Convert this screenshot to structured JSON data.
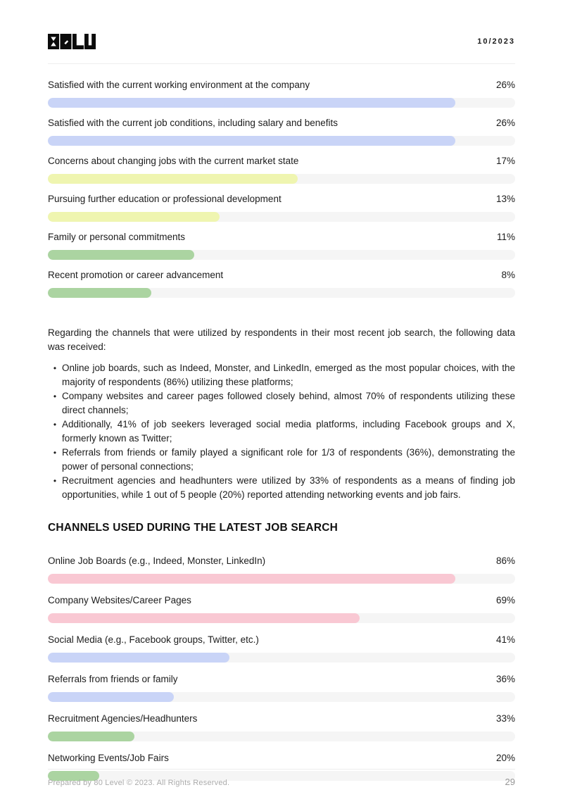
{
  "header": {
    "logo_text": "80LV",
    "date": "10/2023"
  },
  "intro_paragraph": "Regarding the channels that were utilized by respondents in their most recent job search, the following data was received:",
  "bullets": [
    "Online job boards, such as Indeed, Monster, and LinkedIn, emerged as the most popular choices, with the majority of respondents (86%) utilizing these platforms;",
    "Company websites and career pages followed closely behind, almost 70% of respondents utilizing these direct channels;",
    "Additionally, 41% of job seekers leveraged social media platforms, including Facebook groups and X, formerly known as Twitter;",
    "Referrals from friends or family played a significant role for 1/3 of respondents (36%), demonstrating the power of personal connections;",
    "Recruitment agencies and headhunters were utilized by 33% of respondents as a means of finding job opportunities, while 1 out of 5 people (20%) reported attending networking events and job fairs."
  ],
  "section_heading": "CHANNELS USED DURING THE LATEST JOB SEARCH",
  "chart_data": [
    {
      "type": "bar",
      "orientation": "horizontal",
      "title": "",
      "unit": "%",
      "value_labels_position": "right",
      "grid": false,
      "legend": false,
      "categories": [
        "Satisfied with the current working environment at the company",
        "Satisfied with the current job conditions, including salary and benefits",
        "Concerns about changing jobs with the current market state",
        "Pursuing further education or professional development",
        "Family or personal commitments",
        "Recent promotion or career advancement"
      ],
      "values": [
        26,
        26,
        17,
        13,
        11,
        8
      ],
      "rows": [
        {
          "label": "Satisfied with the current working environment at the company",
          "value": 26,
          "display_value": "26%",
          "color": "#c9d4f7",
          "bar_pct": 87.2
        },
        {
          "label": "Satisfied with the current job conditions, including salary and benefits",
          "value": 26,
          "display_value": "26%",
          "color": "#c9d4f7",
          "bar_pct": 87.2
        },
        {
          "label": "Concerns about changing jobs with the current market state",
          "value": 17,
          "display_value": "17%",
          "color": "#eff5b0",
          "bar_pct": 53.5
        },
        {
          "label": "Pursuing further education or professional development",
          "value": 13,
          "display_value": "13%",
          "color": "#eff5b0",
          "bar_pct": 36.8
        },
        {
          "label": "Family or personal commitments",
          "value": 11,
          "display_value": "11%",
          "color": "#abd4a1",
          "bar_pct": 31.4
        },
        {
          "label": "Recent promotion or career advancement",
          "value": 8,
          "display_value": "8%",
          "color": "#abd4a1",
          "bar_pct": 22.1
        }
      ]
    },
    {
      "type": "bar",
      "orientation": "horizontal",
      "title": "CHANNELS USED DURING THE LATEST JOB SEARCH",
      "unit": "%",
      "value_labels_position": "right",
      "grid": false,
      "legend": false,
      "categories": [
        "Online Job Boards (e.g., Indeed, Monster, LinkedIn)",
        "Company Websites/Career Pages",
        "Social Media (e.g., Facebook groups, Twitter, etc.)",
        "Referrals from friends or family",
        "Recruitment Agencies/Headhunters",
        "Networking Events/Job Fairs"
      ],
      "values": [
        86,
        69,
        41,
        36,
        33,
        20
      ],
      "rows": [
        {
          "label": "Online Job Boards (e.g., Indeed, Monster, LinkedIn)",
          "value": 86,
          "display_value": "86%",
          "color": "#f9c8d3",
          "bar_pct": 87.2
        },
        {
          "label": "Company Websites/Career Pages",
          "value": 69,
          "display_value": "69%",
          "color": "#f9c8d3",
          "bar_pct": 66.7
        },
        {
          "label": "Social Media (e.g., Facebook groups, Twitter, etc.)",
          "value": 41,
          "display_value": "41%",
          "color": "#c9d4f7",
          "bar_pct": 38.8
        },
        {
          "label": "Referrals from friends or family",
          "value": 36,
          "display_value": "36%",
          "color": "#c9d4f7",
          "bar_pct": 27.0
        },
        {
          "label": "Recruitment Agencies/Headhunters",
          "value": 33,
          "display_value": "33%",
          "color": "#abd4a1",
          "bar_pct": 18.5
        },
        {
          "label": "Networking Events/Job Fairs",
          "value": 20,
          "display_value": "20%",
          "color": "#abd4a1",
          "bar_pct": 11.0
        }
      ]
    }
  ],
  "footer": {
    "copyright": "Prepared by 80 Level © 2023. All Rights Reserved.",
    "page_number": "29"
  },
  "colors": {
    "bar_blue": "#c9d4f7",
    "bar_yellow": "#eff5b0",
    "bar_green": "#abd4a1",
    "bar_pink": "#f9c8d3",
    "bar_track": "#f5f5f5",
    "divider": "#ededed",
    "text": "#1c1c1c",
    "footer_text": "#ababab"
  }
}
